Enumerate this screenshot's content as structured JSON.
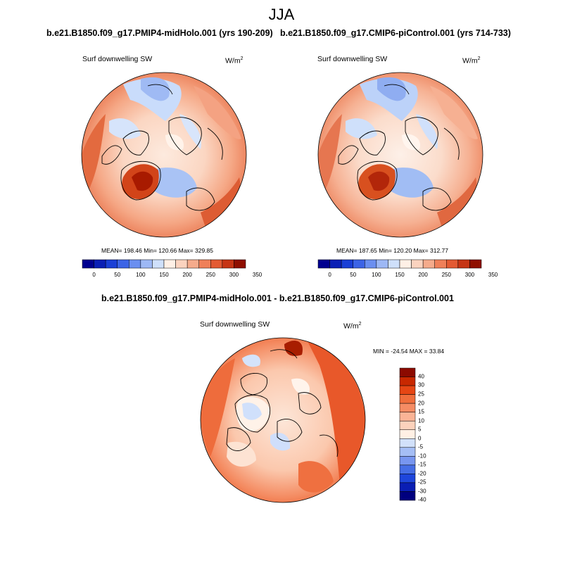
{
  "title": "JJA",
  "colors": {
    "abs_palette": [
      "#00008f",
      "#0a1fb5",
      "#1a3fd6",
      "#3c64e6",
      "#6b8ff0",
      "#9db8f5",
      "#cfe0fb",
      "#fff0e6",
      "#fbd3bf",
      "#f5ab8c",
      "#ef8059",
      "#e35a33",
      "#c63515",
      "#8f0f00"
    ],
    "diff_palette": [
      "#00007f",
      "#0a1eb4",
      "#1e46dc",
      "#466ee6",
      "#7896f0",
      "#a5bef5",
      "#d2e1fa",
      "#fff0e4",
      "#fcd2bc",
      "#fab496",
      "#f58c64",
      "#f06e3c",
      "#e64614",
      "#c82800",
      "#8c0a00"
    ]
  },
  "panels": {
    "left": {
      "title": "b.e21.B1850.f09_g17.PMIP4-midHolo.001 (yrs 190-209)",
      "variable": "Surf downwelling SW",
      "units_base": "W/m",
      "units_exp": "2",
      "stats": "MEAN= 198.46  Min= 120.66  Max= 329.85",
      "ticks": [
        "0",
        "50",
        "100",
        "150",
        "200",
        "250",
        "300",
        "350"
      ]
    },
    "right": {
      "title": "b.e21.B1850.f09_g17.CMIP6-piControl.001 (yrs 714-733)",
      "variable": "Surf downwelling SW",
      "units_base": "W/m",
      "units_exp": "2",
      "stats": "MEAN= 187.65  Min= 120.20  Max= 312.77",
      "ticks": [
        "0",
        "50",
        "100",
        "150",
        "200",
        "250",
        "300",
        "350"
      ]
    },
    "diff": {
      "title": "b.e21.B1850.f09_g17.PMIP4-midHolo.001 - b.e21.B1850.f09_g17.CMIP6-piControl.001",
      "variable": "Surf downwelling SW",
      "units_base": "W/m",
      "units_exp": "2",
      "stats": "MIN = -24.54 MAX =  33.84",
      "ticks": [
        "40",
        "30",
        "25",
        "20",
        "15",
        "10",
        "5",
        "0",
        "-5",
        "-10",
        "-15",
        "-20",
        "-25",
        "-30",
        "-40"
      ]
    }
  }
}
